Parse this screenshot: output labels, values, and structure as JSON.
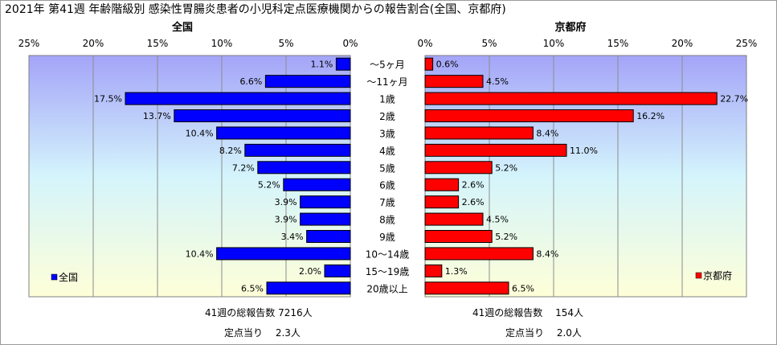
{
  "chart_data": {
    "type": "bar",
    "title": "2021年 第41週 年齢階級別 感染性胃腸炎患者の小児科定点医療機関からの報告割合(全国、京都府)",
    "categories": [
      "～5ヶ月",
      "～11ヶ月",
      "1歳",
      "2歳",
      "3歳",
      "4歳",
      "5歳",
      "6歳",
      "7歳",
      "8歳",
      "9歳",
      "10～14歳",
      "15～19歳",
      "20歳以上"
    ],
    "axis_ticks": [
      "25%",
      "20%",
      "15%",
      "10%",
      "5%",
      "0%"
    ],
    "axis_ticks_right": [
      "0%",
      "5%",
      "10%",
      "15%",
      "20%",
      "25%"
    ],
    "xlim": [
      0,
      25
    ],
    "series": [
      {
        "name": "全国",
        "side": "left",
        "color": "#0000ff",
        "values": [
          1.1,
          6.6,
          17.5,
          13.7,
          10.4,
          8.2,
          7.2,
          5.2,
          3.9,
          3.9,
          3.4,
          10.4,
          2.0,
          6.5
        ],
        "labels": [
          "1.1%",
          "6.6%",
          "17.5%",
          "13.7%",
          "10.4%",
          "8.2%",
          "7.2%",
          "5.2%",
          "3.9%",
          "3.9%",
          "3.4%",
          "10.4%",
          "2.0%",
          "6.5%"
        ]
      },
      {
        "name": "京都府",
        "side": "right",
        "color": "#ff0000",
        "values": [
          0.6,
          4.5,
          22.7,
          16.2,
          8.4,
          11.0,
          5.2,
          2.6,
          2.6,
          4.5,
          5.2,
          8.4,
          1.3,
          6.5
        ],
        "labels": [
          "0.6%",
          "4.5%",
          "22.7%",
          "16.2%",
          "8.4%",
          "11.0%",
          "5.2%",
          "2.6%",
          "2.6%",
          "4.5%",
          "5.2%",
          "8.4%",
          "1.3%",
          "6.5%"
        ]
      }
    ],
    "grid": true,
    "legend": [
      "bottom-left (全国)",
      "bottom-right (京都府)"
    ]
  },
  "footnotes": {
    "national_reports": "41週の総報告数 7216人",
    "national_per_site": "定点当り　 2.3人",
    "kyoto_reports": "41週の総報告数　 154人",
    "kyoto_per_site": "定点当り　 2.0人"
  }
}
